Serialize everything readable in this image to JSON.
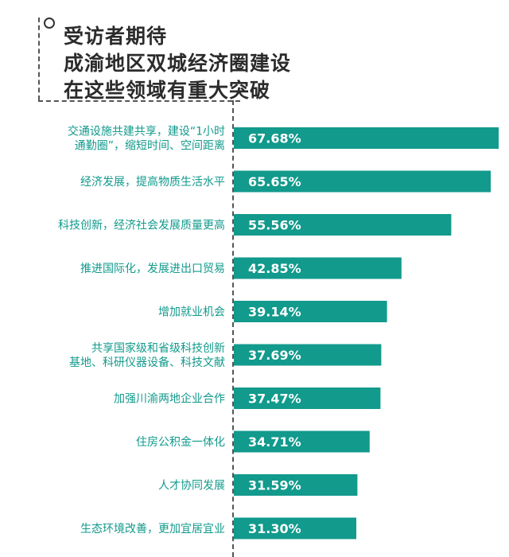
{
  "title_lines": [
    "受访者期待",
    "成渝地区双城经济圈建设",
    "在这些领域有重大突破"
  ],
  "colors": {
    "bar": "#129a8c",
    "label_text": "#129a8c",
    "value_text": "#ffffff",
    "title": "#2b2b2b"
  },
  "chart_data": {
    "type": "bar",
    "orientation": "horizontal",
    "title": "受访者期待成渝地区双城经济圈建设在这些领域有重大突破",
    "categories": [
      [
        "交通设施共建共享，建设“1小时",
        "通勤圈”，缩短时间、空间距离"
      ],
      [
        "经济发展，提高物质生活水平"
      ],
      [
        "科技创新，经济社会发展质量更高"
      ],
      [
        "推进国际化，发展进出口贸易"
      ],
      [
        "增加就业机会"
      ],
      [
        "共享国家级和省级科技创新",
        "基地、科研仪器设备、科技文献"
      ],
      [
        "加强川渝两地企业合作"
      ],
      [
        "住房公积金一体化"
      ],
      [
        "人才协同发展"
      ],
      [
        "生态环境改善，更加宜居宜业"
      ]
    ],
    "values": [
      67.68,
      65.65,
      55.56,
      42.85,
      39.14,
      37.69,
      37.47,
      34.71,
      31.59,
      31.3
    ],
    "value_labels": [
      "67.68%",
      "65.65%",
      "55.56%",
      "42.85%",
      "39.14%",
      "37.69%",
      "37.47%",
      "34.71%",
      "31.59%",
      "31.30%"
    ],
    "unit": "%",
    "xlim": [
      0,
      68
    ]
  }
}
